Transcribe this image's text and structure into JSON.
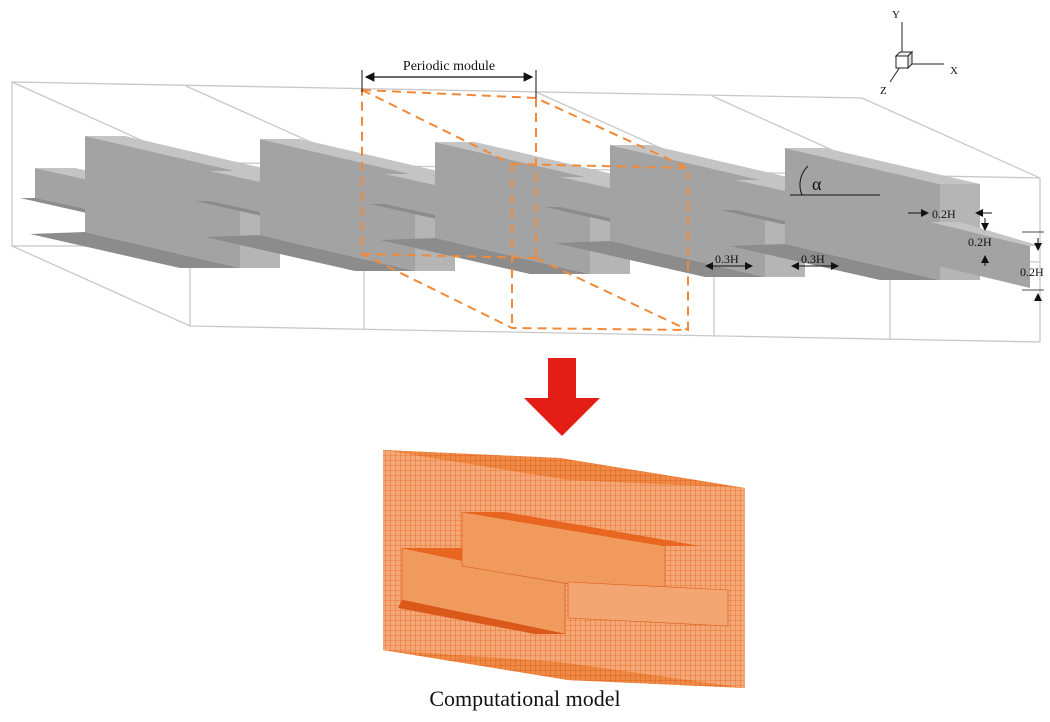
{
  "figure": {
    "module_label": "Periodic module",
    "angle_label": "α",
    "dimensions": {
      "top_gap": "0.2H",
      "step_height": "0.2H",
      "right_height": "0.2H",
      "gap_left": "0.3H",
      "gap_right": "0.3H"
    },
    "axes": {
      "x": "X",
      "y": "Y",
      "z": "Z"
    },
    "caption": "Computational model"
  },
  "colors": {
    "fin_top": "#c4c4c4",
    "fin_side": "#a3a3a3",
    "fin_dark": "#8c8c8c",
    "domain_outline": "#c8c8c8",
    "module_outline": "#f08a3a",
    "arrow": "#e41e14",
    "mesh_fill": "#f4a877",
    "mesh_line": "#e8661f"
  }
}
